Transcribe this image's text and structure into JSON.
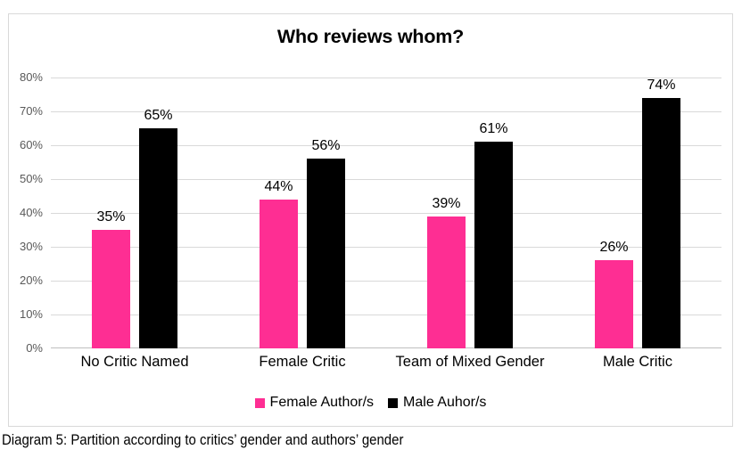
{
  "chart_data": {
    "type": "bar",
    "title": "Who reviews whom?",
    "categories": [
      "No Critic Named",
      "Female Critic",
      "Team of Mixed Gender",
      "Male Critic"
    ],
    "series": [
      {
        "name": "Female Author/s",
        "color": "#fe2e93",
        "values": [
          35,
          44,
          39,
          26
        ]
      },
      {
        "name": "Male Auhor/s",
        "color": "#000000",
        "values": [
          65,
          56,
          61,
          74
        ]
      }
    ],
    "value_suffix": "%",
    "ylim": [
      0,
      80
    ],
    "yticks": [
      "0%",
      "10%",
      "20%",
      "30%",
      "40%",
      "50%",
      "60%",
      "70%",
      "80%"
    ],
    "grid": true,
    "legend_position": "bottom"
  },
  "caption": "Diagram 5: Partition according to critics’ gender and authors’ gender",
  "colors": {
    "female_bar": "#fe2e93",
    "male_bar": "#000000",
    "gridline": "#d9d9d9",
    "axis_line": "#bfbfbf",
    "tick_label": "#595959",
    "border": "#d9d9d9",
    "background": "#ffffff"
  }
}
